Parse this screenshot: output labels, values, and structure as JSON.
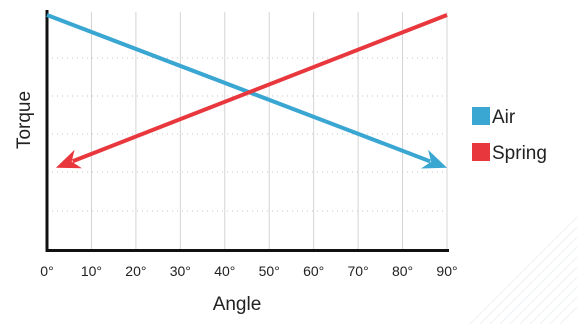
{
  "chart_data": {
    "type": "line",
    "title": "",
    "xlabel": "Angle",
    "ylabel": "Torque",
    "x_ticks": [
      "0°",
      "10°",
      "20°",
      "30°",
      "40°",
      "50°",
      "60°",
      "70°",
      "80°",
      "90°"
    ],
    "xlim": [
      0,
      90
    ],
    "ylim": [
      0,
      1
    ],
    "y_tick_labels_shown": false,
    "grid": true,
    "legend_position": "right",
    "series": [
      {
        "name": "Air",
        "color": "#3aa6d2",
        "x": [
          0,
          90
        ],
        "y": [
          1.0,
          0.35
        ],
        "arrow": "end"
      },
      {
        "name": "Spring",
        "color": "#e8383d",
        "x": [
          90,
          2
        ],
        "y": [
          1.0,
          0.35
        ],
        "arrow": "end"
      }
    ]
  }
}
